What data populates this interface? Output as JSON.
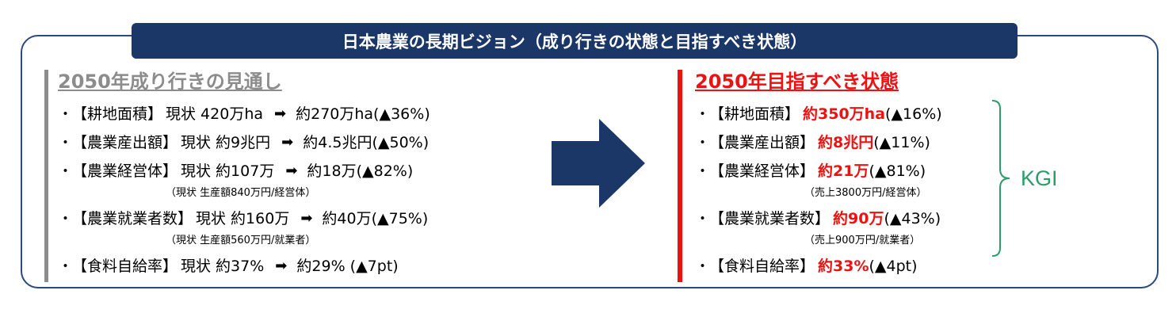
{
  "banner": {
    "title": "日本農業の長期ビジョン（成り行きの状態と目指すべき状態）"
  },
  "left": {
    "title": "2050年成り行きの見通し",
    "items": [
      {
        "label": "【耕地面積】",
        "current": "現状  420万ha",
        "arrow": "➡",
        "target": "約270万ha(▲36%)"
      },
      {
        "label": "【農業産出額】",
        "current": "現状  約9兆円",
        "arrow": "➡",
        "target": "約4.5兆円(▲50%)"
      },
      {
        "label": "【農業経営体】",
        "current": "現状  約107万",
        "arrow": "➡",
        "target": "約18万(▲82%)"
      },
      {
        "label": "【農業就業者数】",
        "current": "現状  約160万",
        "arrow": "➡",
        "target": "約40万(▲75%)"
      },
      {
        "label": "【食料自給率】",
        "current": "現状  約37%",
        "arrow": "➡",
        "target": "約29% (▲7pt)"
      }
    ],
    "notes": [
      "（現状  生産額840万円/経営体）",
      "（現状  生産額560万円/就業者）"
    ]
  },
  "right": {
    "title": "2050年目指すべき状態",
    "items": [
      {
        "label": "【耕地面積】",
        "target": "約350万ha",
        "change": "(▲16%)"
      },
      {
        "label": "【農業産出額】",
        "target": "約8兆円",
        "change": "(▲11%)"
      },
      {
        "label": "【農業経営体】",
        "target": "約21万",
        "change": "(▲81%)"
      },
      {
        "label": "【農業就業者数】",
        "target": "約90万",
        "change": "(▲43%)"
      },
      {
        "label": "【食料自給率】",
        "target": "約33%",
        "change": " (▲4pt)"
      }
    ],
    "notes": [
      "（売上3800万円/経営体）",
      "（売上900万円/就業者）"
    ]
  },
  "kgi": "KGI",
  "bullet": "・",
  "colors": {
    "navy": "#1b3768",
    "red": "#ee1111",
    "gray": "#8c8c8c",
    "green": "#2e9b6a"
  }
}
